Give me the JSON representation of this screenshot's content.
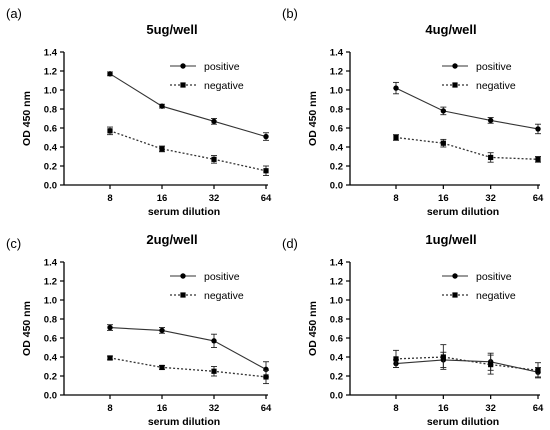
{
  "chart_data": [
    {
      "panel_label": "(a)",
      "type": "line",
      "title": "5ug/well",
      "xlabel": "serum dilution",
      "ylabel": "OD 450 nm",
      "xscale": "log2",
      "x": [
        8,
        16,
        32,
        64
      ],
      "xticks": [
        "8",
        "16",
        "32",
        "64"
      ],
      "ylim": [
        0,
        1.4
      ],
      "yticks": [
        "0.0",
        "0.2",
        "0.4",
        "0.6",
        "0.8",
        "1.0",
        "1.2",
        "1.4"
      ],
      "legend_position": "top-right",
      "series": [
        {
          "name": "positive",
          "marker": "circle",
          "line": "solid",
          "values": [
            1.17,
            0.83,
            0.67,
            0.51
          ],
          "errors": [
            0.02,
            0.02,
            0.03,
            0.04
          ]
        },
        {
          "name": "negative",
          "marker": "square",
          "line": "dotted",
          "values": [
            0.57,
            0.38,
            0.27,
            0.15
          ],
          "errors": [
            0.04,
            0.03,
            0.04,
            0.05
          ]
        }
      ]
    },
    {
      "panel_label": "(b)",
      "type": "line",
      "title": "4ug/well",
      "xlabel": "serum dilution",
      "ylabel": "OD 450 nm",
      "xscale": "log2",
      "x": [
        8,
        16,
        32,
        64
      ],
      "xticks": [
        "8",
        "16",
        "32",
        "64"
      ],
      "ylim": [
        0,
        1.4
      ],
      "yticks": [
        "0.0",
        "0.2",
        "0.4",
        "0.6",
        "0.8",
        "1.0",
        "1.2",
        "1.4"
      ],
      "legend_position": "top-right",
      "series": [
        {
          "name": "positive",
          "marker": "circle",
          "line": "solid",
          "values": [
            1.02,
            0.78,
            0.68,
            0.59
          ],
          "errors": [
            0.06,
            0.04,
            0.03,
            0.05
          ]
        },
        {
          "name": "negative",
          "marker": "square",
          "line": "dotted",
          "values": [
            0.5,
            0.44,
            0.29,
            0.27
          ],
          "errors": [
            0.03,
            0.04,
            0.05,
            0.03
          ]
        }
      ]
    },
    {
      "panel_label": "(c)",
      "type": "line",
      "title": "2ug/well",
      "xlabel": "serum dilution",
      "ylabel": "OD 450 nm",
      "xscale": "log2",
      "x": [
        8,
        16,
        32,
        64
      ],
      "xticks": [
        "8",
        "16",
        "32",
        "64"
      ],
      "ylim": [
        0,
        1.4
      ],
      "yticks": [
        "0.0",
        "0.2",
        "0.4",
        "0.6",
        "0.8",
        "1.0",
        "1.2",
        "1.4"
      ],
      "legend_position": "top-right",
      "series": [
        {
          "name": "positive",
          "marker": "circle",
          "line": "solid",
          "values": [
            0.71,
            0.68,
            0.57,
            0.27
          ],
          "errors": [
            0.03,
            0.03,
            0.07,
            0.08
          ]
        },
        {
          "name": "negative",
          "marker": "square",
          "line": "dotted",
          "values": [
            0.39,
            0.29,
            0.25,
            0.19
          ],
          "errors": [
            0.02,
            0.02,
            0.05,
            0.07
          ]
        }
      ]
    },
    {
      "panel_label": "(d)",
      "type": "line",
      "title": "1ug/well",
      "xlabel": "serum dilution",
      "ylabel": "OD 450 nm",
      "xscale": "log2",
      "x": [
        8,
        16,
        32,
        64
      ],
      "xticks": [
        "8",
        "16",
        "32",
        "64"
      ],
      "ylim": [
        0,
        1.4
      ],
      "yticks": [
        "0.0",
        "0.2",
        "0.4",
        "0.6",
        "0.8",
        "1.0",
        "1.2",
        "1.4"
      ],
      "legend_position": "top-right",
      "series": [
        {
          "name": "positive",
          "marker": "circle",
          "line": "solid",
          "values": [
            0.33,
            0.37,
            0.35,
            0.24
          ],
          "errors": [
            0.04,
            0.08,
            0.09,
            0.05
          ]
        },
        {
          "name": "negative",
          "marker": "square",
          "line": "dotted",
          "values": [
            0.38,
            0.4,
            0.32,
            0.26
          ],
          "errors": [
            0.09,
            0.13,
            0.1,
            0.08
          ]
        }
      ]
    }
  ]
}
